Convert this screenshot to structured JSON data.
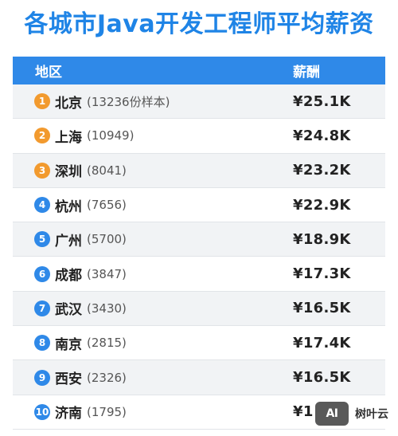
{
  "title": "各城市Java开发工程师平均薪资",
  "header": {
    "region": "地区",
    "salary": "薪酬"
  },
  "colors": {
    "title": "#1f84e6",
    "header_bg": "#2f89e8",
    "badge_orange": "#f29a2e",
    "badge_blue": "#2f89e8"
  },
  "rows": [
    {
      "rank": "1",
      "city": "北京",
      "count": "(13236份样本)",
      "salary": "¥25.1K",
      "badge_color": "#f29a2e"
    },
    {
      "rank": "2",
      "city": "上海",
      "count": "(10949)",
      "salary": "¥24.8K",
      "badge_color": "#f29a2e"
    },
    {
      "rank": "3",
      "city": "深圳",
      "count": "(8041)",
      "salary": "¥23.2K",
      "badge_color": "#f29a2e"
    },
    {
      "rank": "4",
      "city": "杭州",
      "count": "(7656)",
      "salary": "¥22.9K",
      "badge_color": "#2f89e8"
    },
    {
      "rank": "5",
      "city": "广州",
      "count": "(5700)",
      "salary": "¥18.9K",
      "badge_color": "#2f89e8"
    },
    {
      "rank": "6",
      "city": "成都",
      "count": "(3847)",
      "salary": "¥17.3K",
      "badge_color": "#2f89e8"
    },
    {
      "rank": "7",
      "city": "武汉",
      "count": "(3430)",
      "salary": "¥16.5K",
      "badge_color": "#2f89e8"
    },
    {
      "rank": "8",
      "city": "南京",
      "count": "(2815)",
      "salary": "¥17.4K",
      "badge_color": "#2f89e8"
    },
    {
      "rank": "9",
      "city": "西安",
      "count": "(2326)",
      "salary": "¥16.5K",
      "badge_color": "#2f89e8"
    },
    {
      "rank": "10",
      "city": "济南",
      "count": "(1795)",
      "salary": "¥1",
      "badge_color": "#2f89e8"
    }
  ],
  "watermark": {
    "logo": "AI",
    "text": "树叶云"
  }
}
